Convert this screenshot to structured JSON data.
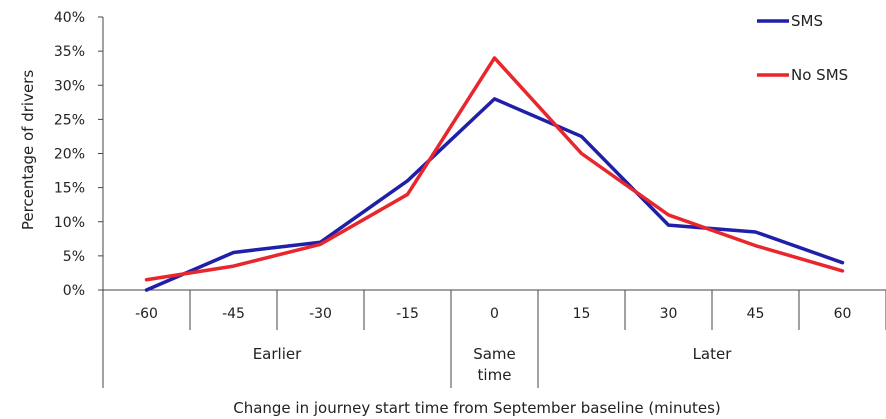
{
  "chart_data": {
    "type": "line",
    "title": "",
    "xlabel": "Change in journey start time from September baseline (minutes)",
    "ylabel": "Percentage of drivers",
    "categories": [
      "-60",
      "-45",
      "-30",
      "-15",
      "0",
      "15",
      "30",
      "45",
      "60"
    ],
    "category_groups": [
      {
        "label": "Earlier",
        "start": 0,
        "end": 3
      },
      {
        "label": "Same time",
        "lines": [
          "Same",
          "time"
        ],
        "start": 4,
        "end": 4
      },
      {
        "label": "Later",
        "start": 5,
        "end": 8
      }
    ],
    "yticks": [
      "0%",
      "5%",
      "10%",
      "15%",
      "20%",
      "25%",
      "30%",
      "35%",
      "40%"
    ],
    "ylim": [
      0,
      40
    ],
    "grid": false,
    "legend_position": "top-right",
    "series": [
      {
        "name": "SMS",
        "color": "#1f1fa8",
        "values": [
          0,
          5.5,
          7,
          16,
          28,
          22.5,
          9.5,
          8.5,
          4
        ]
      },
      {
        "name": "No SMS",
        "color": "#e8262b",
        "values": [
          1.5,
          3.5,
          6.7,
          14,
          34,
          20,
          11,
          6.5,
          2.8
        ]
      }
    ]
  }
}
